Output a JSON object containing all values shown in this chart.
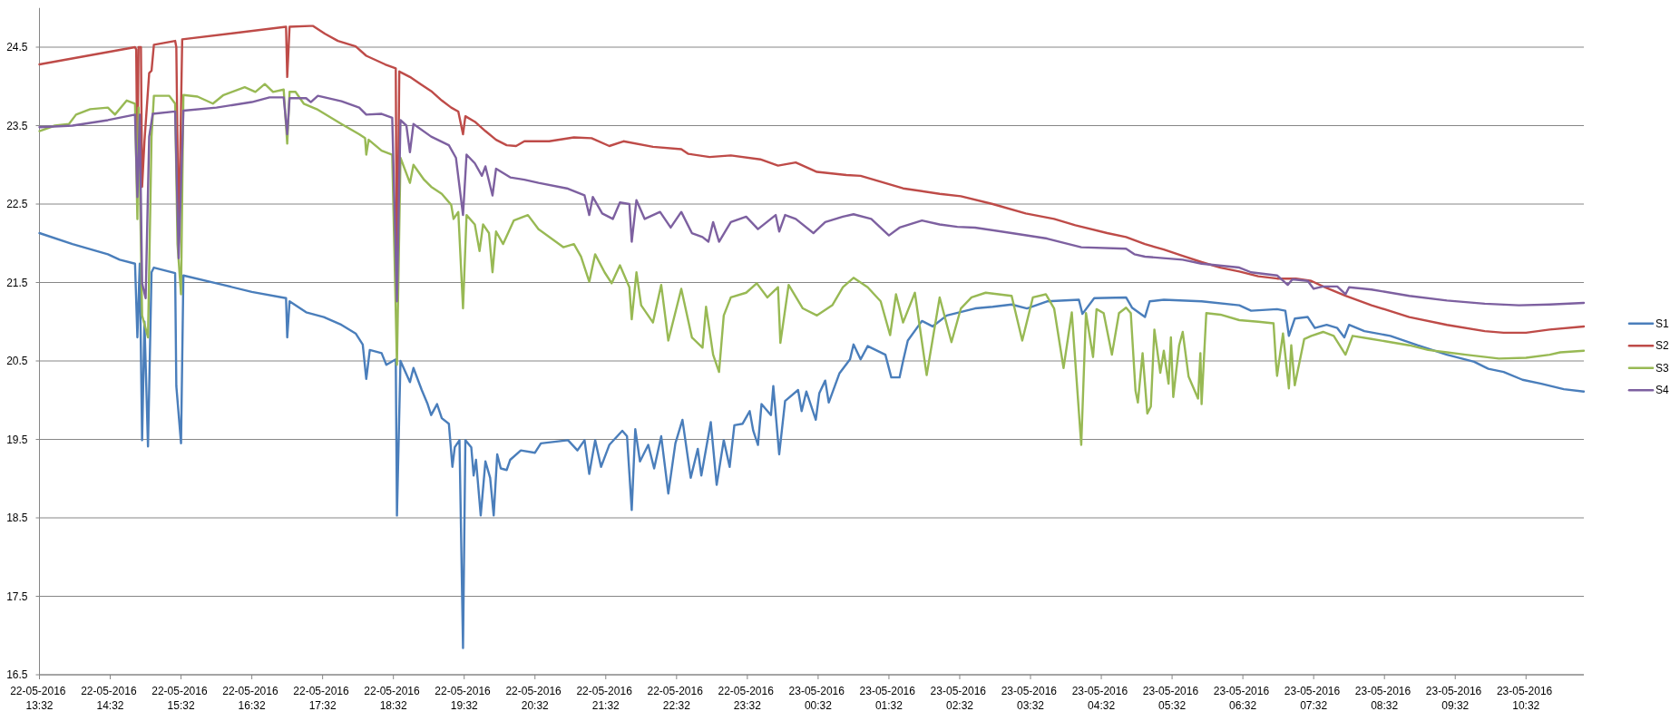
{
  "chart_data": {
    "type": "line",
    "grid": "y",
    "legend": "right",
    "xlim": [
      "2016-05-22T13:32",
      "2016-05-23T11:21"
    ],
    "xticks": [
      {
        "value": "2016-05-22T13:32",
        "label": "22-05-2016 13:32"
      },
      {
        "value": "2016-05-22T14:32",
        "label": "22-05-2016 14:32"
      },
      {
        "value": "2016-05-22T15:32",
        "label": "22-05-2016 15:32"
      },
      {
        "value": "2016-05-22T16:32",
        "label": "22-05-2016 16:32"
      },
      {
        "value": "2016-05-22T17:32",
        "label": "22-05-2016 17:32"
      },
      {
        "value": "2016-05-22T18:32",
        "label": "22-05-2016 18:32"
      },
      {
        "value": "2016-05-22T19:32",
        "label": "22-05-2016 19:32"
      },
      {
        "value": "2016-05-22T20:32",
        "label": "22-05-2016 20:32"
      },
      {
        "value": "2016-05-22T21:32",
        "label": "22-05-2016 21:32"
      },
      {
        "value": "2016-05-22T22:32",
        "label": "22-05-2016 22:32"
      },
      {
        "value": "2016-05-22T23:32",
        "label": "22-05-2016 23:32"
      },
      {
        "value": "2016-05-23T00:32",
        "label": "23-05-2016 00:32"
      },
      {
        "value": "2016-05-23T01:32",
        "label": "23-05-2016 01:32"
      },
      {
        "value": "2016-05-23T02:32",
        "label": "23-05-2016 02:32"
      },
      {
        "value": "2016-05-23T03:32",
        "label": "23-05-2016 03:32"
      },
      {
        "value": "2016-05-23T04:32",
        "label": "23-05-2016 04:32"
      },
      {
        "value": "2016-05-23T05:32",
        "label": "23-05-2016 05:32"
      },
      {
        "value": "2016-05-23T06:32",
        "label": "23-05-2016 06:32"
      },
      {
        "value": "2016-05-23T07:32",
        "label": "23-05-2016 07:32"
      },
      {
        "value": "2016-05-23T08:32",
        "label": "23-05-2016 08:32"
      },
      {
        "value": "2016-05-23T09:32",
        "label": "23-05-2016 09:32"
      },
      {
        "value": "2016-05-23T10:32",
        "label": "23-05-2016 10:32"
      }
    ],
    "ylim": [
      16.5,
      25
    ],
    "yticks": [
      16.5,
      17.5,
      18.5,
      19.5,
      20.5,
      21.5,
      22.5,
      23.5,
      24.5
    ],
    "series": [
      {
        "name": "S1",
        "color": "#4a7ebb",
        "x": [
          "2016-05-22T13:32",
          "2016-05-22T14:00",
          "2016-05-22T14:30",
          "2016-05-22T14:40",
          "2016-05-22T14:53",
          "2016-05-22T14:55",
          "2016-05-22T14:57",
          "2016-05-22T14:59",
          "2016-05-22T15:01",
          "2016-05-22T15:04",
          "2016-05-22T15:07",
          "2016-05-22T15:09",
          "2016-05-22T15:27",
          "2016-05-22T15:28",
          "2016-05-22T15:32",
          "2016-05-22T15:34",
          "2016-05-22T16:02",
          "2016-05-22T16:32",
          "2016-05-22T17:01",
          "2016-05-22T17:02",
          "2016-05-22T17:04",
          "2016-05-22T17:18",
          "2016-05-22T17:33",
          "2016-05-22T17:48",
          "2016-05-22T18:00",
          "2016-05-22T18:06",
          "2016-05-22T18:09",
          "2016-05-22T18:12",
          "2016-05-22T18:22",
          "2016-05-22T18:26",
          "2016-05-22T18:34",
          "2016-05-22T18:35",
          "2016-05-22T18:38",
          "2016-05-22T18:46",
          "2016-05-22T18:49",
          "2016-05-22T18:56",
          "2016-05-22T19:01",
          "2016-05-22T19:04",
          "2016-05-22T19:09",
          "2016-05-22T19:13",
          "2016-05-22T19:19",
          "2016-05-22T19:22",
          "2016-05-22T19:24",
          "2016-05-22T19:28",
          "2016-05-22T19:31",
          "2016-05-22T19:33",
          "2016-05-22T19:38",
          "2016-05-22T19:40",
          "2016-05-22T19:42",
          "2016-05-22T19:46",
          "2016-05-22T19:50",
          "2016-05-22T19:54",
          "2016-05-22T19:57",
          "2016-05-22T20:00",
          "2016-05-22T20:03",
          "2016-05-22T20:08",
          "2016-05-22T20:11",
          "2016-05-22T20:20",
          "2016-05-22T20:32",
          "2016-05-22T20:37",
          "2016-05-22T21:00",
          "2016-05-22T21:08",
          "2016-05-22T21:14",
          "2016-05-22T21:18",
          "2016-05-22T21:23",
          "2016-05-22T21:28",
          "2016-05-22T21:35",
          "2016-05-22T21:46",
          "2016-05-22T21:50",
          "2016-05-22T21:54",
          "2016-05-22T21:57",
          "2016-05-22T22:01",
          "2016-05-22T22:08",
          "2016-05-22T22:13",
          "2016-05-22T22:19",
          "2016-05-22T22:25",
          "2016-05-22T22:31",
          "2016-05-22T22:37",
          "2016-05-22T22:44",
          "2016-05-22T22:50",
          "2016-05-22T22:53",
          "2016-05-22T23:01",
          "2016-05-22T23:06",
          "2016-05-22T23:12",
          "2016-05-22T23:17",
          "2016-05-22T23:21",
          "2016-05-22T23:28",
          "2016-05-22T23:34",
          "2016-05-22T23:37",
          "2016-05-22T23:41",
          "2016-05-22T23:44",
          "2016-05-22T23:52",
          "2016-05-22T23:54",
          "2016-05-22T23:59",
          "2016-05-23T00:04",
          "2016-05-23T00:15",
          "2016-05-23T00:18",
          "2016-05-23T00:22",
          "2016-05-23T00:30",
          "2016-05-23T00:33",
          "2016-05-23T00:38",
          "2016-05-23T00:41",
          "2016-05-23T00:50",
          "2016-05-23T00:59",
          "2016-05-23T01:02",
          "2016-05-23T01:08",
          "2016-05-23T01:14",
          "2016-05-23T01:29",
          "2016-05-23T01:34",
          "2016-05-23T01:41",
          "2016-05-23T01:44",
          "2016-05-23T01:48",
          "2016-05-23T02:00",
          "2016-05-23T02:09",
          "2016-05-23T02:21",
          "2016-05-23T02:45",
          "2016-05-23T03:00",
          "2016-05-23T03:16",
          "2016-05-23T03:29",
          "2016-05-23T03:46",
          "2016-05-23T04:13",
          "2016-05-23T04:16",
          "2016-05-23T04:26",
          "2016-05-23T04:53",
          "2016-05-23T04:58",
          "2016-05-23T05:09",
          "2016-05-23T05:13",
          "2016-05-23T05:25",
          "2016-05-23T05:57",
          "2016-05-23T06:29",
          "2016-05-23T06:39",
          "2016-05-23T07:01",
          "2016-05-23T07:08",
          "2016-05-23T07:11",
          "2016-05-23T07:16",
          "2016-05-23T07:27",
          "2016-05-23T07:33",
          "2016-05-23T07:43",
          "2016-05-23T07:52",
          "2016-05-23T07:58",
          "2016-05-23T08:02",
          "2016-05-23T08:15",
          "2016-05-23T08:37",
          "2016-05-23T09:00",
          "2016-05-23T09:25",
          "2016-05-23T09:48",
          "2016-05-23T10:00",
          "2016-05-23T10:13",
          "2016-05-23T10:29",
          "2016-05-23T10:45",
          "2016-05-23T11:04",
          "2016-05-23T11:21"
        ],
        "values": [
          22.13,
          21.99,
          21.86,
          21.79,
          21.74,
          20.8,
          21.74,
          19.49,
          21.0,
          19.41,
          21.63,
          21.69,
          21.62,
          20.18,
          19.45,
          21.59,
          21.49,
          21.38,
          21.3,
          20.8,
          21.26,
          21.12,
          21.06,
          20.96,
          20.85,
          20.71,
          20.27,
          20.64,
          20.6,
          20.45,
          20.52,
          18.53,
          20.5,
          20.23,
          20.41,
          20.13,
          19.95,
          19.81,
          19.95,
          19.77,
          19.7,
          19.15,
          19.4,
          19.49,
          16.84,
          19.49,
          19.4,
          19.04,
          19.24,
          18.53,
          19.22,
          19.01,
          18.53,
          19.31,
          19.13,
          19.11,
          19.24,
          19.36,
          19.33,
          19.45,
          19.49,
          19.36,
          19.49,
          19.06,
          19.49,
          19.15,
          19.43,
          19.61,
          19.54,
          18.6,
          19.63,
          19.22,
          19.43,
          19.13,
          19.54,
          18.81,
          19.45,
          19.75,
          19.01,
          19.38,
          19.04,
          19.72,
          18.92,
          19.49,
          19.15,
          19.68,
          19.7,
          19.86,
          19.61,
          19.43,
          19.95,
          19.81,
          20.18,
          19.31,
          19.99,
          20.13,
          19.86,
          20.11,
          19.75,
          20.09,
          20.25,
          19.97,
          20.34,
          20.52,
          20.71,
          20.52,
          20.69,
          20.58,
          20.29,
          20.29,
          20.5,
          20.76,
          21.01,
          20.94,
          21.08,
          21.17,
          21.19,
          21.22,
          21.17,
          21.26,
          21.28,
          21.1,
          21.3,
          21.31,
          21.18,
          21.06,
          21.26,
          21.28,
          21.26,
          21.21,
          21.14,
          21.16,
          21.14,
          20.82,
          21.04,
          21.06,
          20.92,
          20.96,
          20.92,
          20.8,
          20.96,
          20.88,
          20.82,
          20.7,
          20.58,
          20.49,
          20.4,
          20.36,
          20.26,
          20.21,
          20.14,
          20.11
        ]
      },
      {
        "name": "S2",
        "color": "#be4b48",
        "x": [
          "2016-05-22T13:32",
          "2016-05-22T14:53",
          "2016-05-22T14:54",
          "2016-05-22T14:55",
          "2016-05-22T14:56",
          "2016-05-22T14:58",
          "2016-05-22T14:59",
          "2016-05-22T15:01",
          "2016-05-22T15:05",
          "2016-05-22T15:07",
          "2016-05-22T15:09",
          "2016-05-22T15:27",
          "2016-05-22T15:28",
          "2016-05-22T15:30",
          "2016-05-22T15:33",
          "2016-05-22T17:01",
          "2016-05-22T17:02",
          "2016-05-22T17:04",
          "2016-05-22T17:21",
          "2016-05-22T17:24",
          "2016-05-22T17:34",
          "2016-05-22T17:45",
          "2016-05-22T18:00",
          "2016-05-22T18:09",
          "2016-05-22T18:25",
          "2016-05-22T18:34",
          "2016-05-22T18:35",
          "2016-05-22T18:37",
          "2016-05-22T18:46",
          "2016-05-22T18:55",
          "2016-05-22T19:04",
          "2016-05-22T19:13",
          "2016-05-22T19:21",
          "2016-05-22T19:27",
          "2016-05-22T19:31",
          "2016-05-22T19:33",
          "2016-05-22T19:41",
          "2016-05-22T19:50",
          "2016-05-22T19:59",
          "2016-05-22T20:08",
          "2016-05-22T20:16",
          "2016-05-22T20:23",
          "2016-05-22T20:35",
          "2016-05-22T20:44",
          "2016-05-22T21:05",
          "2016-05-22T21:20",
          "2016-05-22T21:35",
          "2016-05-22T21:47",
          "2016-05-22T22:12",
          "2016-05-22T22:36",
          "2016-05-22T22:42",
          "2016-05-22T23:00",
          "2016-05-22T23:18",
          "2016-05-22T23:43",
          "2016-05-22T23:58",
          "2016-05-23T00:13",
          "2016-05-23T00:31",
          "2016-05-23T00:56",
          "2016-05-23T01:08",
          "2016-05-23T01:44",
          "2016-05-23T02:15",
          "2016-05-23T02:33",
          "2016-05-23T03:00",
          "2016-05-23T03:28",
          "2016-05-23T03:52",
          "2016-05-23T04:10",
          "2016-05-23T04:37",
          "2016-05-23T04:53",
          "2016-05-23T05:09",
          "2016-05-23T05:25",
          "2016-05-23T05:41",
          "2016-05-23T05:57",
          "2016-05-23T06:13",
          "2016-05-23T06:29",
          "2016-05-23T06:45",
          "2016-05-23T07:01",
          "2016-05-23T07:17",
          "2016-05-23T07:30",
          "2016-05-23T07:40",
          "2016-05-23T07:59",
          "2016-05-23T08:21",
          "2016-05-23T08:53",
          "2016-05-23T09:25",
          "2016-05-23T09:57",
          "2016-05-23T10:13",
          "2016-05-23T10:32",
          "2016-05-23T10:52",
          "2016-05-23T11:21"
        ],
        "values": [
          24.28,
          24.5,
          24.47,
          22.9,
          24.5,
          24.5,
          22.72,
          23.3,
          24.17,
          24.2,
          24.53,
          24.58,
          24.5,
          22.0,
          24.6,
          24.76,
          24.12,
          24.76,
          24.77,
          24.77,
          24.67,
          24.58,
          24.51,
          24.39,
          24.28,
          24.23,
          21.3,
          24.19,
          24.12,
          24.03,
          23.94,
          23.82,
          23.73,
          23.68,
          23.39,
          23.62,
          23.55,
          23.43,
          23.32,
          23.25,
          23.24,
          23.3,
          23.3,
          23.3,
          23.35,
          23.34,
          23.24,
          23.3,
          23.23,
          23.2,
          23.14,
          23.1,
          23.12,
          23.07,
          22.99,
          23.03,
          22.91,
          22.87,
          22.86,
          22.7,
          22.63,
          22.6,
          22.5,
          22.38,
          22.31,
          22.23,
          22.13,
          22.08,
          21.99,
          21.92,
          21.84,
          21.76,
          21.69,
          21.64,
          21.58,
          21.55,
          21.55,
          21.52,
          21.45,
          21.33,
          21.21,
          21.06,
          20.96,
          20.88,
          20.86,
          20.86,
          20.9,
          20.94
        ]
      },
      {
        "name": "S3",
        "color": "#98b954",
        "x": [
          "2016-05-22T13:32",
          "2016-05-22T13:45",
          "2016-05-22T13:57",
          "2016-05-22T14:03",
          "2016-05-22T14:15",
          "2016-05-22T14:30",
          "2016-05-22T14:36",
          "2016-05-22T14:46",
          "2016-05-22T14:53",
          "2016-05-22T14:55",
          "2016-05-22T14:56",
          "2016-05-22T14:59",
          "2016-05-22T15:04",
          "2016-05-22T15:07",
          "2016-05-22T15:09",
          "2016-05-22T15:22",
          "2016-05-22T15:27",
          "2016-05-22T15:29",
          "2016-05-22T15:32",
          "2016-05-22T15:34",
          "2016-05-22T15:46",
          "2016-05-22T15:59",
          "2016-05-22T16:08",
          "2016-05-22T16:26",
          "2016-05-22T16:35",
          "2016-05-22T16:43",
          "2016-05-22T16:50",
          "2016-05-22T16:59",
          "2016-05-22T17:02",
          "2016-05-22T17:04",
          "2016-05-22T17:09",
          "2016-05-22T17:16",
          "2016-05-22T17:27",
          "2016-05-22T17:48",
          "2016-05-22T18:03",
          "2016-05-22T18:08",
          "2016-05-22T18:09",
          "2016-05-22T18:11",
          "2016-05-22T18:22",
          "2016-05-22T18:31",
          "2016-05-22T18:35",
          "2016-05-22T18:38",
          "2016-05-22T18:46",
          "2016-05-22T18:49",
          "2016-05-22T18:58",
          "2016-05-22T19:04",
          "2016-05-22T19:13",
          "2016-05-22T19:21",
          "2016-05-22T19:23",
          "2016-05-22T19:27",
          "2016-05-22T19:31",
          "2016-05-22T19:34",
          "2016-05-22T19:41",
          "2016-05-22T19:45",
          "2016-05-22T19:48",
          "2016-05-22T19:53",
          "2016-05-22T19:56",
          "2016-05-22T19:59",
          "2016-05-22T20:05",
          "2016-05-22T20:14",
          "2016-05-22T20:26",
          "2016-05-22T20:35",
          "2016-05-22T20:56",
          "2016-05-22T21:05",
          "2016-05-22T21:11",
          "2016-05-22T21:18",
          "2016-05-22T21:23",
          "2016-05-22T21:31",
          "2016-05-22T21:37",
          "2016-05-22T21:44",
          "2016-05-22T21:52",
          "2016-05-22T21:54",
          "2016-05-22T21:58",
          "2016-05-22T22:02",
          "2016-05-22T22:12",
          "2016-05-22T22:19",
          "2016-05-22T22:25",
          "2016-05-22T22:36",
          "2016-05-22T22:45",
          "2016-05-22T22:54",
          "2016-05-22T22:57",
          "2016-05-22T23:03",
          "2016-05-22T23:08",
          "2016-05-22T23:12",
          "2016-05-22T23:18",
          "2016-05-22T23:31",
          "2016-05-22T23:40",
          "2016-05-22T23:49",
          "2016-05-22T23:58",
          "2016-05-23T00:00",
          "2016-05-23T00:07",
          "2016-05-23T00:19",
          "2016-05-23T00:31",
          "2016-05-23T00:44",
          "2016-05-23T00:53",
          "2016-05-23T01:02",
          "2016-05-23T01:14",
          "2016-05-23T01:25",
          "2016-05-23T01:33",
          "2016-05-23T01:38",
          "2016-05-23T01:44",
          "2016-05-23T01:54",
          "2016-05-23T02:04",
          "2016-05-23T02:15",
          "2016-05-23T02:25",
          "2016-05-23T02:33",
          "2016-05-23T02:42",
          "2016-05-23T02:54",
          "2016-05-23T03:16",
          "2016-05-23T03:25",
          "2016-05-23T03:34",
          "2016-05-23T03:45",
          "2016-05-23T03:52",
          "2016-05-23T04:00",
          "2016-05-23T04:07",
          "2016-05-23T04:15",
          "2016-05-23T04:19",
          "2016-05-23T04:25",
          "2016-05-23T04:28",
          "2016-05-23T04:34",
          "2016-05-23T04:41",
          "2016-05-23T04:47",
          "2016-05-23T04:53",
          "2016-05-23T04:57",
          "2016-05-23T05:01",
          "2016-05-23T05:03",
          "2016-05-23T05:07",
          "2016-05-23T05:11",
          "2016-05-23T05:14",
          "2016-05-23T05:17",
          "2016-05-23T05:22",
          "2016-05-23T05:25",
          "2016-05-23T05:29",
          "2016-05-23T05:31",
          "2016-05-23T05:33",
          "2016-05-23T05:38",
          "2016-05-23T05:41",
          "2016-05-23T05:46",
          "2016-05-23T05:54",
          "2016-05-23T05:56",
          "2016-05-23T05:57",
          "2016-05-23T06:01",
          "2016-05-23T06:13",
          "2016-05-23T06:29",
          "2016-05-23T06:45",
          "2016-05-23T06:58",
          "2016-05-23T07:00",
          "2016-05-23T07:01",
          "2016-05-23T07:06",
          "2016-05-23T07:11",
          "2016-05-23T07:13",
          "2016-05-23T07:16",
          "2016-05-23T07:24",
          "2016-05-23T07:30",
          "2016-05-23T07:40",
          "2016-05-23T07:49",
          "2016-05-23T07:59",
          "2016-05-23T08:05",
          "2016-05-23T08:21",
          "2016-05-23T08:37",
          "2016-05-23T08:53",
          "2016-05-23T09:09",
          "2016-05-23T09:25",
          "2016-05-23T09:41",
          "2016-05-23T10:09",
          "2016-05-23T10:32",
          "2016-05-23T10:52",
          "2016-05-23T11:01",
          "2016-05-23T11:21"
        ],
        "values": [
          23.43,
          23.5,
          23.52,
          23.64,
          23.71,
          23.73,
          23.64,
          23.82,
          23.78,
          22.31,
          23.73,
          21.08,
          20.8,
          23.36,
          23.88,
          23.88,
          23.78,
          21.99,
          21.35,
          23.89,
          23.87,
          23.78,
          23.89,
          23.99,
          23.93,
          24.03,
          23.93,
          23.96,
          23.27,
          23.93,
          23.93,
          23.78,
          23.71,
          23.52,
          23.39,
          23.34,
          23.13,
          23.32,
          23.18,
          23.13,
          20.45,
          23.09,
          22.77,
          23.0,
          22.81,
          22.72,
          22.63,
          22.49,
          22.31,
          22.4,
          21.17,
          22.36,
          22.24,
          21.9,
          22.24,
          22.13,
          21.63,
          22.15,
          21.99,
          22.29,
          22.36,
          22.18,
          21.95,
          21.99,
          21.83,
          21.51,
          21.86,
          21.63,
          21.49,
          21.72,
          21.44,
          21.03,
          21.63,
          21.21,
          20.99,
          21.47,
          20.76,
          21.42,
          20.8,
          20.67,
          21.19,
          20.58,
          20.36,
          21.08,
          21.31,
          21.37,
          21.49,
          21.31,
          21.44,
          20.73,
          21.47,
          21.17,
          21.08,
          21.21,
          21.44,
          21.56,
          21.44,
          21.26,
          20.83,
          21.35,
          20.99,
          21.37,
          20.32,
          21.31,
          20.74,
          21.17,
          21.31,
          21.37,
          21.33,
          20.76,
          21.31,
          21.35,
          21.17,
          20.41,
          21.12,
          19.43,
          21.11,
          20.55,
          21.16,
          21.11,
          20.58,
          21.11,
          21.18,
          21.11,
          20.12,
          19.97,
          20.6,
          19.83,
          19.92,
          20.9,
          20.35,
          20.63,
          20.21,
          20.8,
          20.04,
          20.7,
          20.87,
          20.3,
          20.02,
          20.6,
          19.95,
          21.11,
          21.09,
          21.02,
          21.0,
          20.98,
          20.49,
          20.31,
          20.85,
          20.15,
          20.7,
          20.19,
          20.78,
          20.82,
          20.87,
          20.82,
          20.58,
          20.82,
          20.78,
          20.74,
          20.7,
          20.64,
          20.61,
          20.58,
          20.53,
          20.54,
          20.58,
          20.61,
          20.63
        ]
      },
      {
        "name": "S4",
        "color": "#7d60a0",
        "x": [
          "2016-05-22T13:32",
          "2016-05-22T14:00",
          "2016-05-22T14:30",
          "2016-05-22T14:53",
          "2016-05-22T14:55",
          "2016-05-22T14:57",
          "2016-05-22T14:59",
          "2016-05-22T15:02",
          "2016-05-22T15:05",
          "2016-05-22T15:08",
          "2016-05-22T15:27",
          "2016-05-22T15:30",
          "2016-05-22T15:34",
          "2016-05-22T16:02",
          "2016-05-22T16:32",
          "2016-05-22T16:47",
          "2016-05-22T16:59",
          "2016-05-22T17:02",
          "2016-05-22T17:04",
          "2016-05-22T17:18",
          "2016-05-22T17:22",
          "2016-05-22T17:28",
          "2016-05-22T17:48",
          "2016-05-22T18:03",
          "2016-05-22T18:09",
          "2016-05-22T18:22",
          "2016-05-22T18:31",
          "2016-05-22T18:35",
          "2016-05-22T18:38",
          "2016-05-22T18:43",
          "2016-05-22T18:46",
          "2016-05-22T18:49",
          "2016-05-22T19:04",
          "2016-05-22T19:19",
          "2016-05-22T19:25",
          "2016-05-22T19:31",
          "2016-05-22T19:34",
          "2016-05-22T19:41",
          "2016-05-22T19:47",
          "2016-05-22T19:50",
          "2016-05-22T19:56",
          "2016-05-22T19:59",
          "2016-05-22T20:11",
          "2016-05-22T20:23",
          "2016-05-22T20:35",
          "2016-05-22T20:59",
          "2016-05-22T21:14",
          "2016-05-22T21:18",
          "2016-05-22T21:21",
          "2016-05-22T21:29",
          "2016-05-22T21:38",
          "2016-05-22T21:44",
          "2016-05-22T21:52",
          "2016-05-22T21:54",
          "2016-05-22T21:58",
          "2016-05-22T22:05",
          "2016-05-22T22:18",
          "2016-05-22T22:27",
          "2016-05-22T22:36",
          "2016-05-22T22:45",
          "2016-05-22T22:54",
          "2016-05-22T22:59",
          "2016-05-22T23:03",
          "2016-05-22T23:08",
          "2016-05-22T23:18",
          "2016-05-22T23:31",
          "2016-05-22T23:41",
          "2016-05-22T23:56",
          "2016-05-22T23:59",
          "2016-05-23T00:04",
          "2016-05-23T00:13",
          "2016-05-23T00:28",
          "2016-05-23T00:38",
          "2016-05-23T00:53",
          "2016-05-23T01:02",
          "2016-05-23T01:17",
          "2016-05-23T01:32",
          "2016-05-23T01:41",
          "2016-05-23T02:00",
          "2016-05-23T02:15",
          "2016-05-23T02:30",
          "2016-05-23T02:45",
          "2016-05-23T03:16",
          "2016-05-23T03:46",
          "2016-05-23T04:15",
          "2016-05-23T04:53",
          "2016-05-23T05:00",
          "2016-05-23T05:09",
          "2016-05-23T05:41",
          "2016-05-23T05:57",
          "2016-05-23T06:29",
          "2016-05-23T06:39",
          "2016-05-23T07:01",
          "2016-05-23T07:10",
          "2016-05-23T07:14",
          "2016-05-23T07:27",
          "2016-05-23T07:32",
          "2016-05-23T07:40",
          "2016-05-23T07:52",
          "2016-05-23T07:59",
          "2016-05-23T08:02",
          "2016-05-23T08:21",
          "2016-05-23T08:53",
          "2016-05-23T09:25",
          "2016-05-23T09:57",
          "2016-05-23T10:26",
          "2016-05-23T10:52",
          "2016-05-23T11:21"
        ],
        "values": [
          23.48,
          23.5,
          23.57,
          23.64,
          22.59,
          23.64,
          21.49,
          21.3,
          23.36,
          23.65,
          23.68,
          21.81,
          23.69,
          23.73,
          23.8,
          23.86,
          23.86,
          23.39,
          23.85,
          23.85,
          23.8,
          23.88,
          23.81,
          23.73,
          23.64,
          23.65,
          23.6,
          21.26,
          23.57,
          23.5,
          23.16,
          23.52,
          23.36,
          23.25,
          23.09,
          22.36,
          23.13,
          23.02,
          22.86,
          22.98,
          22.61,
          22.95,
          22.84,
          22.81,
          22.77,
          22.7,
          22.61,
          22.36,
          22.59,
          22.38,
          22.31,
          22.52,
          22.5,
          22.02,
          22.55,
          22.31,
          22.4,
          22.2,
          22.4,
          22.13,
          22.08,
          22.02,
          22.27,
          22.02,
          22.27,
          22.34,
          22.18,
          22.36,
          22.15,
          22.36,
          22.31,
          22.13,
          22.27,
          22.34,
          22.37,
          22.31,
          22.1,
          22.2,
          22.29,
          22.24,
          22.21,
          22.2,
          22.13,
          22.06,
          21.95,
          21.93,
          21.86,
          21.83,
          21.79,
          21.74,
          21.69,
          21.63,
          21.59,
          21.47,
          21.54,
          21.52,
          21.42,
          21.45,
          21.45,
          21.35,
          21.44,
          21.41,
          21.33,
          21.27,
          21.23,
          21.21,
          21.22,
          21.24
        ]
      }
    ]
  }
}
